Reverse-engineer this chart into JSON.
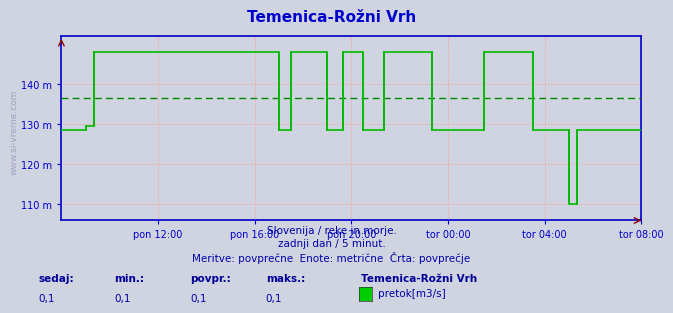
{
  "title": "Temenica-Rožni Vrh",
  "title_color": "#0000cc",
  "bg_color": "#d0d4e0",
  "plot_bg_color": "#d0d4e0",
  "ytick_labels": [
    "110 m",
    "120 m",
    "130 m",
    "140 m"
  ],
  "ytick_values": [
    110,
    120,
    130,
    140
  ],
  "ylim": [
    106,
    152
  ],
  "xlim": [
    0,
    288
  ],
  "xtick_positions": [
    48,
    96,
    144,
    192,
    240,
    288
  ],
  "xtick_labels": [
    "pon 12:00",
    "pon 16:00",
    "pon 20:00",
    "tor 00:00",
    "tor 04:00",
    "tor 08:00"
  ],
  "line_color": "#00bb00",
  "avg_line_color": "#008800",
  "avg_value": 136.5,
  "grid_color": "#ff9999",
  "axis_color": "#0000cc",
  "tick_color": "#0000cc",
  "watermark_color": "#9999bb",
  "subtitle1": "Slovenija / reke in morje.",
  "subtitle2": "zadnji dan / 5 minut.",
  "subtitle3": "Meritve: povprečne  Enote: metrične  Črta: povprečje",
  "subtitle_color": "#0000aa",
  "legend_title": "Temenica-Rožni Vrh",
  "legend_color_box": "#00cc00",
  "legend_label": "pretok[m3/s]",
  "stats_labels": [
    "sedaj:",
    "min.:",
    "povpr.:",
    "maks.:"
  ],
  "stats_values": [
    "0,1",
    "0,1",
    "0,1",
    "0,1"
  ],
  "stats_label_color": "#000099",
  "stats_value_color": "#0000aa",
  "font_family": "DejaVu Sans",
  "data_segments": [
    {
      "x_start": 0,
      "x_end": 12,
      "y": 128.5
    },
    {
      "x_start": 12,
      "x_end": 16,
      "y": 129.5
    },
    {
      "x_start": 16,
      "x_end": 108,
      "y": 148
    },
    {
      "x_start": 108,
      "x_end": 114,
      "y": 128.5
    },
    {
      "x_start": 114,
      "x_end": 132,
      "y": 148
    },
    {
      "x_start": 132,
      "x_end": 140,
      "y": 128.5
    },
    {
      "x_start": 140,
      "x_end": 150,
      "y": 148
    },
    {
      "x_start": 150,
      "x_end": 160,
      "y": 128.5
    },
    {
      "x_start": 160,
      "x_end": 184,
      "y": 148
    },
    {
      "x_start": 184,
      "x_end": 210,
      "y": 128.5
    },
    {
      "x_start": 210,
      "x_end": 234,
      "y": 148
    },
    {
      "x_start": 234,
      "x_end": 252,
      "y": 128.5
    },
    {
      "x_start": 252,
      "x_end": 256,
      "y": 110
    },
    {
      "x_start": 256,
      "x_end": 260,
      "y": 128.5
    },
    {
      "x_start": 260,
      "x_end": 288,
      "y": 128.5
    }
  ]
}
